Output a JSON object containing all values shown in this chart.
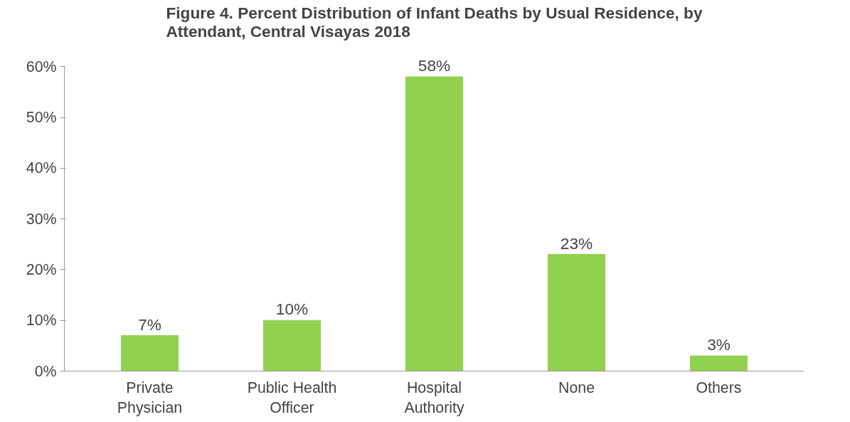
{
  "chart_data": {
    "type": "bar",
    "title": "Figure 4. Percent Distribution of Infant Deaths by Usual Residence, by Attendant, Central Visayas 2018",
    "categories": [
      "Private Physician",
      "Public Health Officer",
      "Hospital Authority",
      "None",
      "Others"
    ],
    "values": [
      7,
      10,
      58,
      23,
      3
    ],
    "value_labels": [
      "7%",
      "10%",
      "58%",
      "23%",
      "3%"
    ],
    "color": "#92d050",
    "ylim": [
      0,
      60
    ],
    "yticks": [
      {
        "value": 0,
        "label": "0%"
      },
      {
        "value": 10,
        "label": "10%"
      },
      {
        "value": 20,
        "label": "20%"
      },
      {
        "value": 30,
        "label": "30%"
      },
      {
        "value": 40,
        "label": "40%"
      },
      {
        "value": 50,
        "label": "50%"
      },
      {
        "value": 60,
        "label": "60%"
      }
    ],
    "grid": false
  }
}
